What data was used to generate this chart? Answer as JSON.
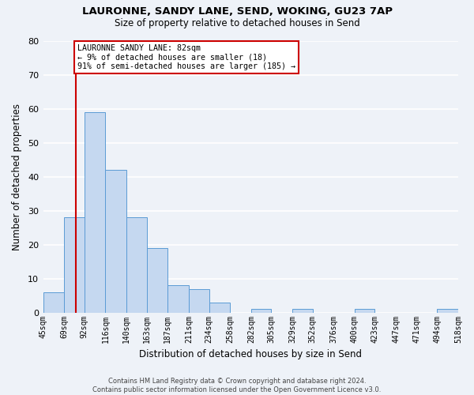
{
  "title": "LAURONNE, SANDY LANE, SEND, WOKING, GU23 7AP",
  "subtitle": "Size of property relative to detached houses in Send",
  "xlabel": "Distribution of detached houses by size in Send",
  "ylabel": "Number of detached properties",
  "bar_color": "#c5d8f0",
  "bar_edge_color": "#5b9bd5",
  "background_color": "#eef2f8",
  "grid_color": "#ffffff",
  "bin_edges": [
    45,
    69,
    92,
    116,
    140,
    163,
    187,
    211,
    234,
    258,
    282,
    305,
    329,
    352,
    376,
    400,
    423,
    447,
    471,
    494,
    518
  ],
  "bin_labels": [
    "45sqm",
    "69sqm",
    "92sqm",
    "116sqm",
    "140sqm",
    "163sqm",
    "187sqm",
    "211sqm",
    "234sqm",
    "258sqm",
    "282sqm",
    "305sqm",
    "329sqm",
    "352sqm",
    "376sqm",
    "400sqm",
    "423sqm",
    "447sqm",
    "471sqm",
    "494sqm",
    "518sqm"
  ],
  "counts": [
    6,
    28,
    59,
    42,
    28,
    19,
    8,
    7,
    3,
    0,
    1,
    0,
    1,
    0,
    0,
    1,
    0,
    0,
    0,
    1
  ],
  "property_line_x": 82,
  "property_line_color": "#cc0000",
  "annotation_title": "LAURONNE SANDY LANE: 82sqm",
  "annotation_line1": "← 9% of detached houses are smaller (18)",
  "annotation_line2": "91% of semi-detached houses are larger (185) →",
  "annotation_box_color": "#ffffff",
  "annotation_box_edge_color": "#cc0000",
  "footer_line1": "Contains HM Land Registry data © Crown copyright and database right 2024.",
  "footer_line2": "Contains public sector information licensed under the Open Government Licence v3.0.",
  "ylim": [
    0,
    80
  ],
  "yticks": [
    0,
    10,
    20,
    30,
    40,
    50,
    60,
    70,
    80
  ]
}
